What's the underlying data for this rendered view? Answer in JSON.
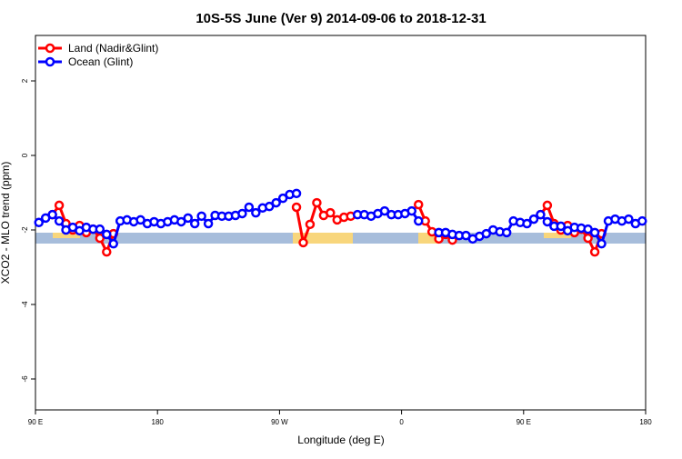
{
  "chart_data": {
    "type": "line",
    "title": "10S-5S June (Ver 9)   2014-09-06 to 2018-12-31",
    "xlabel": "Longitude (deg E)",
    "ylabel": "XCO2 - MLO trend (ppm)",
    "x": [
      92.5,
      97.5,
      102.5,
      107.5,
      112.5,
      117.5,
      122.5,
      127.5,
      132.5,
      137.5,
      142.5,
      147.5,
      152.5,
      157.5,
      162.5,
      167.5,
      172.5,
      177.5,
      182.5,
      187.5,
      192.5,
      197.5,
      202.5,
      207.5,
      212.5,
      217.5,
      222.5,
      227.5,
      232.5,
      237.5,
      242.5,
      247.5,
      252.5,
      257.5,
      262.5,
      267.5,
      272.5,
      277.5,
      282.5,
      287.5,
      292.5,
      297.5,
      302.5,
      307.5,
      312.5,
      317.5,
      322.5,
      327.5,
      332.5,
      337.5,
      342.5,
      347.5,
      352.5,
      357.5,
      362.5,
      367.5,
      372.5,
      377.5,
      382.5,
      387.5,
      392.5,
      397.5,
      402.5,
      407.5,
      412.5,
      417.5,
      422.5,
      427.5,
      432.5,
      437.5,
      442.5,
      447.5,
      452.5,
      457.5,
      462.5,
      467.5,
      472.5,
      477.5,
      482.5,
      487.5,
      492.5,
      497.5,
      502.5,
      507.5,
      512.5,
      517.5,
      522.5,
      527.5,
      532.5,
      537.5
    ],
    "series": [
      {
        "name": "Land (Nadir&Glint)",
        "color": "#ff0000",
        "values": [
          null,
          null,
          -1.59,
          -1.34,
          -1.83,
          -2.0,
          -1.88,
          -2.07,
          -1.98,
          -2.22,
          -2.59,
          -2.1,
          null,
          null,
          null,
          null,
          null,
          null,
          null,
          null,
          null,
          null,
          null,
          null,
          null,
          null,
          null,
          null,
          null,
          null,
          null,
          null,
          null,
          null,
          null,
          null,
          null,
          null,
          -1.39,
          -2.34,
          -1.85,
          -1.27,
          -1.61,
          -1.54,
          -1.73,
          -1.66,
          -1.63,
          null,
          null,
          null,
          null,
          null,
          null,
          null,
          null,
          null,
          -1.32,
          -1.76,
          -2.05,
          -2.24,
          -2.12,
          -2.27,
          null,
          null,
          null,
          null,
          null,
          null,
          null,
          null,
          null,
          null,
          null,
          null,
          -1.59,
          -1.34,
          -1.83,
          -2.0,
          -1.88,
          -2.07,
          -1.98,
          -2.22,
          -2.59,
          -2.1,
          null,
          null,
          null,
          null,
          null,
          null
        ]
      },
      {
        "name": "Ocean (Glint)",
        "color": "#0000ff",
        "values": [
          -1.8,
          -1.68,
          -1.59,
          -1.76,
          -2.0,
          -1.93,
          -2.02,
          -1.93,
          -1.98,
          -1.98,
          -2.12,
          -2.37,
          -1.76,
          -1.73,
          -1.78,
          -1.73,
          -1.83,
          -1.78,
          -1.83,
          -1.78,
          -1.73,
          -1.78,
          -1.68,
          -1.83,
          -1.63,
          -1.83,
          -1.61,
          -1.63,
          -1.63,
          -1.61,
          -1.56,
          -1.39,
          -1.54,
          -1.41,
          -1.37,
          -1.27,
          -1.15,
          -1.05,
          -1.02,
          null,
          null,
          null,
          null,
          null,
          null,
          null,
          null,
          -1.59,
          -1.59,
          -1.63,
          -1.56,
          -1.49,
          -1.59,
          -1.59,
          -1.56,
          -1.49,
          -1.76,
          null,
          null,
          -2.07,
          -2.07,
          -2.12,
          -2.15,
          -2.15,
          -2.24,
          -2.17,
          -2.1,
          -2.0,
          -2.05,
          -2.07,
          -1.76,
          -1.8,
          -1.83,
          -1.71,
          -1.59,
          -1.78,
          -1.9,
          -1.9,
          -2.02,
          -1.93,
          -1.95,
          -1.98,
          -2.07,
          -2.37,
          -1.76,
          -1.71,
          -1.76,
          -1.71,
          -1.83,
          -1.76
        ]
      }
    ],
    "xlim": [
      90,
      540
    ],
    "xticks": [
      {
        "value": 90,
        "label": "90 E"
      },
      180,
      {
        "value": 270,
        "label": "90 W"
      },
      {
        "value": 360,
        "label": "0"
      },
      {
        "value": 450,
        "label": "90 E"
      },
      {
        "value": 540,
        "label": "180"
      }
    ],
    "ylim": [
      -6.83,
      3.22
    ],
    "yticks": [
      -6,
      -4,
      -2,
      0,
      2
    ],
    "legend": "top-left"
  }
}
